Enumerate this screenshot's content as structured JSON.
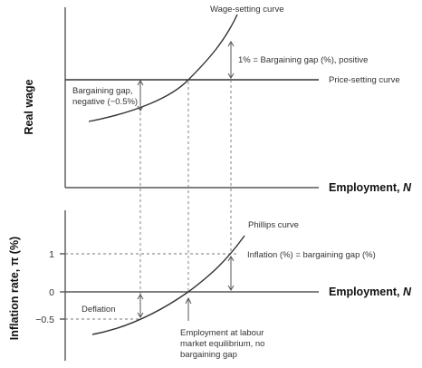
{
  "top_panel": {
    "y_axis_label": "Real wage",
    "x_axis_label": "Employment, ",
    "x_axis_symbol": "N",
    "wage_curve_label": "Wage-setting curve",
    "price_curve_label": "Price-setting curve",
    "positive_gap_label": "1% = Bargaining gap (%), positive",
    "negative_gap_label_line1": "Bargaining gap,",
    "negative_gap_label_line2": "negative (−0.5%)"
  },
  "bottom_panel": {
    "y_axis_label": "Inflation rate, π (%)",
    "x_axis_label": "Employment, ",
    "x_axis_symbol": "N",
    "phillips_label": "Phillips curve",
    "tick_labels": [
      "1",
      "0",
      "−0.5"
    ],
    "inflation_label": "Inflation (%) = bargaining gap (%)",
    "deflation_label": "Deflation",
    "equilibrium_label_line1": "Employment at labour",
    "equilibrium_label_line2": "market equilibrium, no",
    "equilibrium_label_line3": "bargaining gap"
  }
}
